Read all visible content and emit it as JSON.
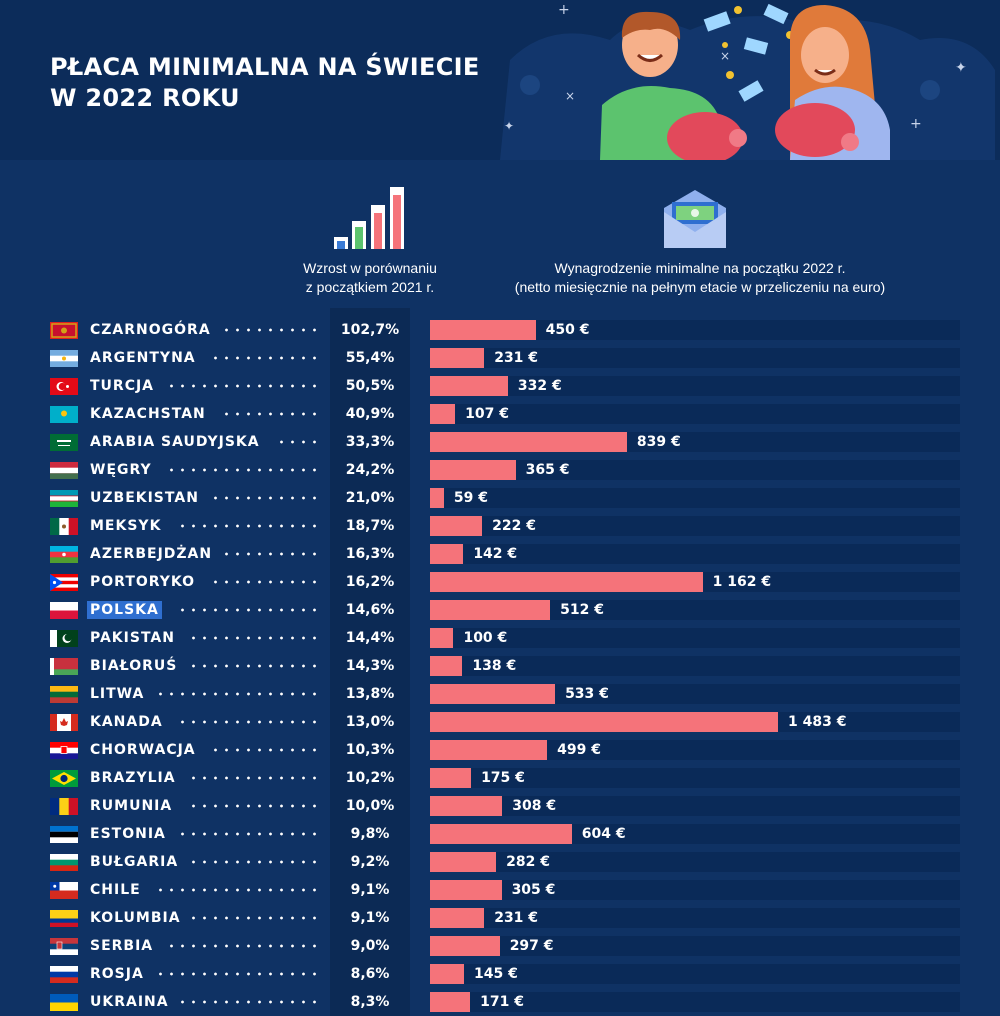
{
  "title": {
    "line1": "PŁACA MINIMALNA NA ŚWIECIE",
    "line2": "W 2022 ROKU"
  },
  "columns": {
    "growth_line1": "Wzrost w porównaniu",
    "growth_line2": "z początkiem 2021 r.",
    "wage_line1": "Wynagrodzenie minimalne na początku 2022 r.",
    "wage_line2": "(netto miesięcznie na pełnym etacie w przeliczeniu na euro)"
  },
  "colors": {
    "background": "#0f3264",
    "bar": "#f5737a",
    "bar_track": "#0a2a58",
    "highlight": "#2f6fd0"
  },
  "chart_data": {
    "type": "bar",
    "orientation": "horizontal",
    "xlim": [
      0,
      1483
    ],
    "categories": [
      "CZARNOGÓRA",
      "ARGENTYNA",
      "TURCJA",
      "KAZACHSTAN",
      "ARABIA SAUDYJSKA",
      "WĘGRY",
      "UZBEKISTAN",
      "MEKSYK",
      "AZERBEJDŻAN",
      "PORTORYKO",
      "POLSKA",
      "PAKISTAN",
      "BIAŁORUŚ",
      "LITWA",
      "KANADA",
      "CHORWACJA",
      "BRAZYLIA",
      "RUMUNIA",
      "ESTONIA",
      "BUŁGARIA",
      "CHILE",
      "KOLUMBIA",
      "SERBIA",
      "ROSJA",
      "UKRAINA"
    ],
    "growth_labels": [
      "102,7%",
      "55,4%",
      "50,5%",
      "40,9%",
      "33,3%",
      "24,2%",
      "21,0%",
      "18,7%",
      "16,3%",
      "16,2%",
      "14,6%",
      "14,4%",
      "14,3%",
      "13,8%",
      "13,0%",
      "10,3%",
      "10,2%",
      "10,0%",
      "9,8%",
      "9,2%",
      "9,1%",
      "9,1%",
      "9,0%",
      "8,6%",
      "8,3%"
    ],
    "values": [
      450,
      231,
      332,
      107,
      839,
      365,
      59,
      222,
      142,
      1162,
      512,
      100,
      138,
      533,
      1483,
      499,
      175,
      308,
      604,
      282,
      305,
      231,
      297,
      145,
      171
    ],
    "value_labels": [
      "450 €",
      "231 €",
      "332 €",
      "107 €",
      "839 €",
      "365 €",
      "59 €",
      "222 €",
      "142 €",
      "1 162 €",
      "512 €",
      "100 €",
      "138 €",
      "533 €",
      "1 483 €",
      "499 €",
      "175 €",
      "308 €",
      "604 €",
      "282 €",
      "305 €",
      "231 €",
      "297 €",
      "145 €",
      "171 €"
    ],
    "highlighted": "POLSKA"
  }
}
